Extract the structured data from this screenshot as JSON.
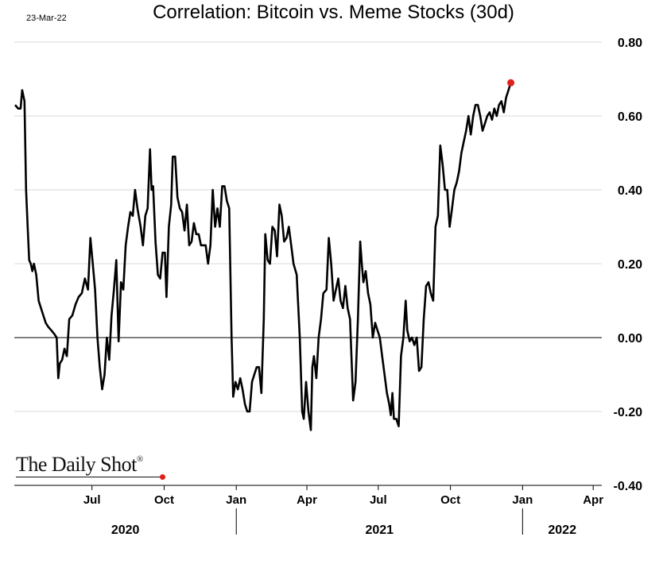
{
  "date_stamp": "23-Mar-22",
  "title": "Correlation: Bitcoin vs. Meme Stocks (30d)",
  "logo_text": "The Daily Shot",
  "logo_mark": "®",
  "colors": {
    "line": "#000000",
    "grid": "#d9d9d9",
    "zero_line": "#000000",
    "last_point": "#e0201b"
  },
  "chart_data": {
    "type": "line",
    "title": "Correlation: Bitcoin vs. Meme Stocks (30d)",
    "xlabel": "",
    "ylabel": "",
    "ylim": [
      -0.4,
      0.8
    ],
    "y_ticks": [
      "0.80",
      "0.60",
      "0.40",
      "0.20",
      "0.00",
      "-0.20",
      "-0.40"
    ],
    "y_tick_values": [
      0.8,
      0.6,
      0.4,
      0.2,
      0.0,
      -0.2,
      -0.4
    ],
    "xlim": [
      "2020-03-24",
      "2022-04-12"
    ],
    "month_ticks": [
      {
        "label": "Jul",
        "date": "2020-07-01"
      },
      {
        "label": "Oct",
        "date": "2020-10-01"
      },
      {
        "label": "Jan",
        "date": "2021-01-01"
      },
      {
        "label": "Apr",
        "date": "2021-04-01"
      },
      {
        "label": "Jul",
        "date": "2021-07-01"
      },
      {
        "label": "Oct",
        "date": "2021-10-01"
      },
      {
        "label": "Jan",
        "date": "2022-01-01"
      },
      {
        "label": "Apr",
        "date": "2022-04-01"
      }
    ],
    "year_labels": [
      {
        "label": "2020",
        "start": "2020-03-24",
        "end": "2021-01-01"
      },
      {
        "label": "2021",
        "start": "2021-01-01",
        "end": "2022-01-01"
      },
      {
        "label": "2022",
        "start": "2022-01-01",
        "end": "2022-04-12"
      }
    ],
    "grid": true,
    "series": [
      {
        "highlight_last": true,
        "points": [
          [
            "2020-03-25",
            0.63
          ],
          [
            "2020-03-29",
            0.62
          ],
          [
            "2020-04-01",
            0.62
          ],
          [
            "2020-04-03",
            0.67
          ],
          [
            "2020-04-06",
            0.64
          ],
          [
            "2020-04-08",
            0.4
          ],
          [
            "2020-04-10",
            0.3
          ],
          [
            "2020-04-12",
            0.21
          ],
          [
            "2020-04-14",
            0.2
          ],
          [
            "2020-04-16",
            0.18
          ],
          [
            "2020-04-18",
            0.2
          ],
          [
            "2020-04-21",
            0.17
          ],
          [
            "2020-04-24",
            0.1
          ],
          [
            "2020-04-27",
            0.08
          ],
          [
            "2020-04-30",
            0.06
          ],
          [
            "2020-05-03",
            0.04
          ],
          [
            "2020-05-06",
            0.03
          ],
          [
            "2020-05-10",
            0.02
          ],
          [
            "2020-05-14",
            0.01
          ],
          [
            "2020-05-17",
            0.0
          ],
          [
            "2020-05-19",
            -0.11
          ],
          [
            "2020-05-21",
            -0.07
          ],
          [
            "2020-05-24",
            -0.06
          ],
          [
            "2020-05-27",
            -0.03
          ],
          [
            "2020-05-30",
            -0.05
          ],
          [
            "2020-06-02",
            0.05
          ],
          [
            "2020-06-06",
            0.06
          ],
          [
            "2020-06-10",
            0.09
          ],
          [
            "2020-06-14",
            0.11
          ],
          [
            "2020-06-18",
            0.12
          ],
          [
            "2020-06-22",
            0.16
          ],
          [
            "2020-06-26",
            0.13
          ],
          [
            "2020-06-29",
            0.27
          ],
          [
            "2020-07-02",
            0.2
          ],
          [
            "2020-07-05",
            0.13
          ],
          [
            "2020-07-08",
            0.0
          ],
          [
            "2020-07-11",
            -0.08
          ],
          [
            "2020-07-14",
            -0.14
          ],
          [
            "2020-07-17",
            -0.1
          ],
          [
            "2020-07-20",
            0.0
          ],
          [
            "2020-07-23",
            -0.06
          ],
          [
            "2020-07-26",
            0.06
          ],
          [
            "2020-07-29",
            0.13
          ],
          [
            "2020-08-01",
            0.21
          ],
          [
            "2020-08-04",
            -0.01
          ],
          [
            "2020-08-07",
            0.15
          ],
          [
            "2020-08-10",
            0.13
          ],
          [
            "2020-08-13",
            0.25
          ],
          [
            "2020-08-16",
            0.3
          ],
          [
            "2020-08-19",
            0.34
          ],
          [
            "2020-08-22",
            0.33
          ],
          [
            "2020-08-25",
            0.4
          ],
          [
            "2020-08-28",
            0.35
          ],
          [
            "2020-09-01",
            0.3
          ],
          [
            "2020-09-04",
            0.25
          ],
          [
            "2020-09-07",
            0.33
          ],
          [
            "2020-09-10",
            0.35
          ],
          [
            "2020-09-13",
            0.51
          ],
          [
            "2020-09-15",
            0.4
          ],
          [
            "2020-09-17",
            0.41
          ],
          [
            "2020-09-20",
            0.26
          ],
          [
            "2020-09-23",
            0.17
          ],
          [
            "2020-09-26",
            0.16
          ],
          [
            "2020-09-29",
            0.23
          ],
          [
            "2020-10-02",
            0.23
          ],
          [
            "2020-10-04",
            0.11
          ],
          [
            "2020-10-07",
            0.3
          ],
          [
            "2020-10-10",
            0.36
          ],
          [
            "2020-10-12",
            0.49
          ],
          [
            "2020-10-15",
            0.49
          ],
          [
            "2020-10-18",
            0.38
          ],
          [
            "2020-10-21",
            0.35
          ],
          [
            "2020-10-24",
            0.34
          ],
          [
            "2020-10-27",
            0.29
          ],
          [
            "2020-10-30",
            0.36
          ],
          [
            "2020-11-02",
            0.25
          ],
          [
            "2020-11-05",
            0.26
          ],
          [
            "2020-11-08",
            0.31
          ],
          [
            "2020-11-11",
            0.28
          ],
          [
            "2020-11-14",
            0.28
          ],
          [
            "2020-11-17",
            0.25
          ],
          [
            "2020-11-20",
            0.25
          ],
          [
            "2020-11-23",
            0.25
          ],
          [
            "2020-11-26",
            0.2
          ],
          [
            "2020-11-29",
            0.25
          ],
          [
            "2020-12-02",
            0.4
          ],
          [
            "2020-12-05",
            0.3
          ],
          [
            "2020-12-08",
            0.35
          ],
          [
            "2020-12-11",
            0.3
          ],
          [
            "2020-12-14",
            0.41
          ],
          [
            "2020-12-17",
            0.41
          ],
          [
            "2020-12-20",
            0.37
          ],
          [
            "2020-12-23",
            0.35
          ],
          [
            "2020-12-26",
            0.0
          ],
          [
            "2020-12-28",
            -0.16
          ],
          [
            "2020-12-31",
            -0.12
          ],
          [
            "2021-01-03",
            -0.14
          ],
          [
            "2021-01-06",
            -0.11
          ],
          [
            "2021-01-09",
            -0.14
          ],
          [
            "2021-01-12",
            -0.18
          ],
          [
            "2021-01-15",
            -0.2
          ],
          [
            "2021-01-18",
            -0.2
          ],
          [
            "2021-01-21",
            -0.12
          ],
          [
            "2021-01-24",
            -0.1
          ],
          [
            "2021-01-27",
            -0.08
          ],
          [
            "2021-01-30",
            -0.08
          ],
          [
            "2021-02-02",
            -0.15
          ],
          [
            "2021-02-05",
            0.05
          ],
          [
            "2021-02-07",
            0.28
          ],
          [
            "2021-02-10",
            0.21
          ],
          [
            "2021-02-13",
            0.2
          ],
          [
            "2021-02-16",
            0.3
          ],
          [
            "2021-02-19",
            0.29
          ],
          [
            "2021-02-22",
            0.22
          ],
          [
            "2021-02-25",
            0.36
          ],
          [
            "2021-02-28",
            0.33
          ],
          [
            "2021-03-03",
            0.26
          ],
          [
            "2021-03-06",
            0.27
          ],
          [
            "2021-03-09",
            0.3
          ],
          [
            "2021-03-12",
            0.25
          ],
          [
            "2021-03-15",
            0.2
          ],
          [
            "2021-03-19",
            0.17
          ],
          [
            "2021-03-23",
            0.0
          ],
          [
            "2021-03-26",
            -0.2
          ],
          [
            "2021-03-28",
            -0.22
          ],
          [
            "2021-03-31",
            -0.12
          ],
          [
            "2021-04-03",
            -0.2
          ],
          [
            "2021-04-06",
            -0.25
          ],
          [
            "2021-04-08",
            -0.08
          ],
          [
            "2021-04-10",
            -0.05
          ],
          [
            "2021-04-13",
            -0.11
          ],
          [
            "2021-04-16",
            0.0
          ],
          [
            "2021-04-19",
            0.05
          ],
          [
            "2021-04-22",
            0.12
          ],
          [
            "2021-04-26",
            0.13
          ],
          [
            "2021-04-29",
            0.27
          ],
          [
            "2021-05-02",
            0.2
          ],
          [
            "2021-05-05",
            0.1
          ],
          [
            "2021-05-08",
            0.13
          ],
          [
            "2021-05-11",
            0.16
          ],
          [
            "2021-05-14",
            0.1
          ],
          [
            "2021-05-17",
            0.08
          ],
          [
            "2021-05-20",
            0.14
          ],
          [
            "2021-05-23",
            0.08
          ],
          [
            "2021-05-26",
            0.05
          ],
          [
            "2021-05-30",
            -0.17
          ],
          [
            "2021-06-02",
            -0.12
          ],
          [
            "2021-06-05",
            0.05
          ],
          [
            "2021-06-08",
            0.26
          ],
          [
            "2021-06-10",
            0.2
          ],
          [
            "2021-06-12",
            0.15
          ],
          [
            "2021-06-15",
            0.18
          ],
          [
            "2021-06-18",
            0.12
          ],
          [
            "2021-06-21",
            0.09
          ],
          [
            "2021-06-24",
            0.0
          ],
          [
            "2021-06-27",
            0.04
          ],
          [
            "2021-06-30",
            0.02
          ],
          [
            "2021-07-03",
            0.0
          ],
          [
            "2021-07-06",
            -0.05
          ],
          [
            "2021-07-09",
            -0.1
          ],
          [
            "2021-07-12",
            -0.15
          ],
          [
            "2021-07-15",
            -0.18
          ],
          [
            "2021-07-17",
            -0.21
          ],
          [
            "2021-07-19",
            -0.15
          ],
          [
            "2021-07-21",
            -0.22
          ],
          [
            "2021-07-24",
            -0.22
          ],
          [
            "2021-07-27",
            -0.24
          ],
          [
            "2021-07-30",
            -0.05
          ],
          [
            "2021-08-02",
            0.0
          ],
          [
            "2021-08-05",
            0.1
          ],
          [
            "2021-08-07",
            0.02
          ],
          [
            "2021-08-10",
            -0.01
          ],
          [
            "2021-08-13",
            0.0
          ],
          [
            "2021-08-16",
            -0.02
          ],
          [
            "2021-08-19",
            0.0
          ],
          [
            "2021-08-22",
            -0.09
          ],
          [
            "2021-08-25",
            -0.08
          ],
          [
            "2021-08-28",
            0.05
          ],
          [
            "2021-08-31",
            0.14
          ],
          [
            "2021-09-03",
            0.15
          ],
          [
            "2021-09-06",
            0.12
          ],
          [
            "2021-09-09",
            0.1
          ],
          [
            "2021-09-12",
            0.3
          ],
          [
            "2021-09-15",
            0.33
          ],
          [
            "2021-09-18",
            0.52
          ],
          [
            "2021-09-21",
            0.47
          ],
          [
            "2021-09-24",
            0.4
          ],
          [
            "2021-09-27",
            0.4
          ],
          [
            "2021-09-30",
            0.3
          ],
          [
            "2021-10-03",
            0.35
          ],
          [
            "2021-10-06",
            0.4
          ],
          [
            "2021-10-09",
            0.42
          ],
          [
            "2021-10-12",
            0.45
          ],
          [
            "2021-10-15",
            0.5
          ],
          [
            "2021-10-18",
            0.53
          ],
          [
            "2021-10-21",
            0.56
          ],
          [
            "2021-10-24",
            0.6
          ],
          [
            "2021-10-27",
            0.55
          ],
          [
            "2021-10-30",
            0.6
          ],
          [
            "2021-11-02",
            0.63
          ],
          [
            "2021-11-05",
            0.63
          ],
          [
            "2021-11-08",
            0.6
          ],
          [
            "2021-11-11",
            0.56
          ],
          [
            "2021-11-14",
            0.58
          ],
          [
            "2021-11-17",
            0.6
          ],
          [
            "2021-11-20",
            0.61
          ],
          [
            "2021-11-23",
            0.59
          ],
          [
            "2021-11-26",
            0.62
          ],
          [
            "2021-11-29",
            0.6
          ],
          [
            "2021-12-02",
            0.63
          ],
          [
            "2021-12-05",
            0.64
          ],
          [
            "2021-12-08",
            0.61
          ],
          [
            "2021-12-11",
            0.65
          ],
          [
            "2021-12-14",
            0.67
          ],
          [
            "2021-12-17",
            0.69
          ]
        ]
      }
    ]
  }
}
